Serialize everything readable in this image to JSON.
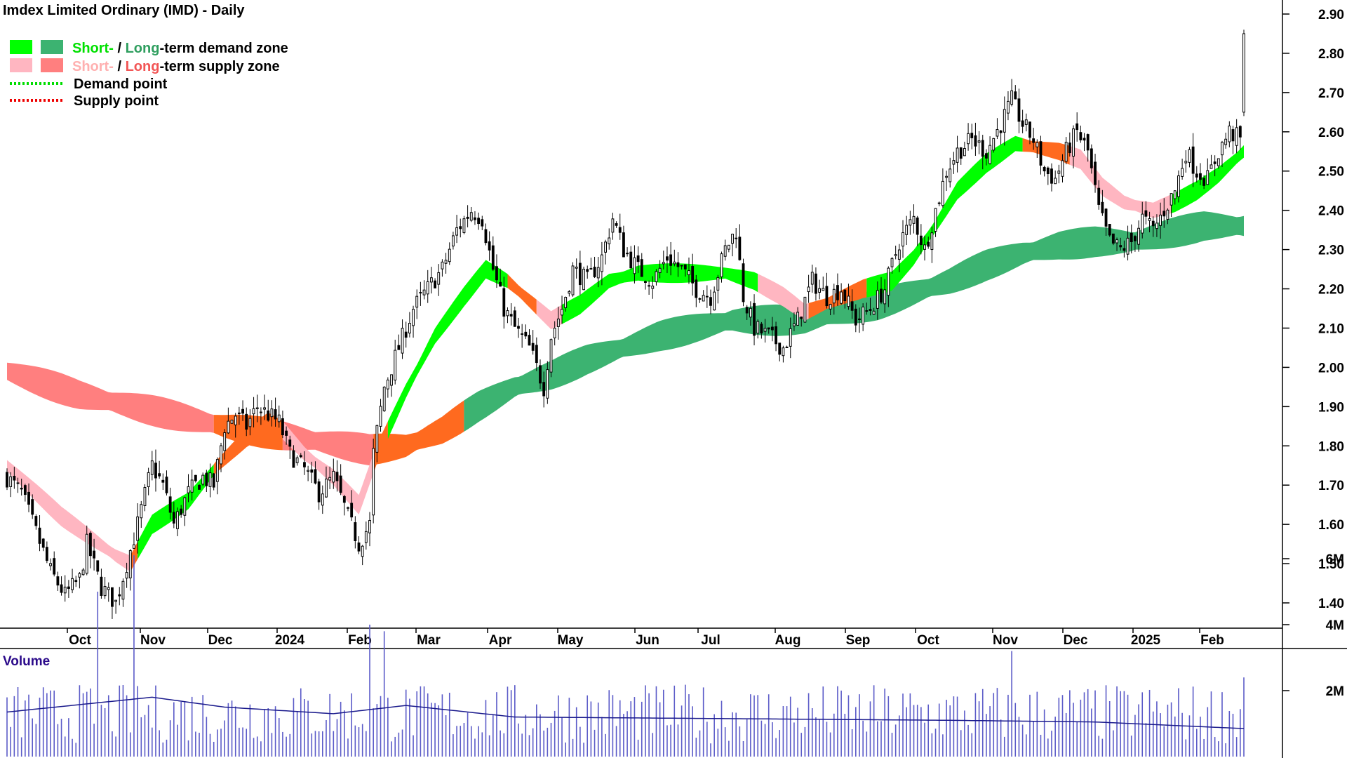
{
  "title": "Imdex Limited Ordinary (IMD) - Daily",
  "legend": {
    "demand_zone": {
      "short": "Short-",
      "sep": " / ",
      "long": "Long",
      "rest": "-term demand zone"
    },
    "supply_zone": {
      "short": "Short-",
      "sep": " / ",
      "long": "Long",
      "rest": "-term supply zone"
    },
    "demand_point": "Demand point",
    "supply_point": "Supply point"
  },
  "volume_label": "Volume",
  "colors": {
    "short_demand": "#00ff00",
    "long_demand": "#3cb371",
    "short_supply": "#ffb6c1",
    "long_supply": "#ff7f7f",
    "overlap": "#ff6a1f",
    "candle": "#000000",
    "volume": "#5b5bc8",
    "volume_ma": "#1a1a8c",
    "legend_short_text": "#00e000",
    "legend_long_text": "#2e9e5e",
    "legend_short_supply_text": "#ffb0b0",
    "legend_long_supply_text": "#f25555"
  },
  "chart_data": {
    "type": "candlestick",
    "price_axis": {
      "ylim": [
        1.32,
        2.96
      ],
      "ticks": [
        "1.40",
        "1.50",
        "1.60",
        "1.70",
        "1.80",
        "1.90",
        "2.00",
        "2.10",
        "2.20",
        "2.30",
        "2.40",
        "2.50",
        "2.60",
        "2.70",
        "2.80",
        "2.90"
      ]
    },
    "volume_axis": {
      "ylim": [
        0,
        6.5
      ],
      "ticks": [
        "2M",
        "4M",
        "6M"
      ]
    },
    "months": [
      "Oct",
      "Nov",
      "Dec",
      "2024",
      "Feb",
      "Mar",
      "Apr",
      "May",
      "Jun",
      "Jul",
      "Aug",
      "Sep",
      "Oct",
      "Nov",
      "Dec",
      "2025",
      "Feb"
    ],
    "close_path": [
      [
        0,
        1.72
      ],
      [
        4,
        1.68
      ],
      [
        8,
        1.58
      ],
      [
        12,
        1.48
      ],
      [
        16,
        1.42
      ],
      [
        20,
        1.46
      ],
      [
        22,
        1.55
      ],
      [
        26,
        1.44
      ],
      [
        30,
        1.4
      ],
      [
        33,
        1.5
      ],
      [
        36,
        1.6
      ],
      [
        40,
        1.75
      ],
      [
        43,
        1.7
      ],
      [
        46,
        1.6
      ],
      [
        50,
        1.68
      ],
      [
        54,
        1.72
      ],
      [
        57,
        1.7
      ],
      [
        60,
        1.85
      ],
      [
        63,
        1.88
      ],
      [
        66,
        1.85
      ],
      [
        69,
        1.9
      ],
      [
        72,
        1.88
      ],
      [
        75,
        1.86
      ],
      [
        78,
        1.78
      ],
      [
        82,
        1.74
      ],
      [
        86,
        1.68
      ],
      [
        90,
        1.72
      ],
      [
        94,
        1.62
      ],
      [
        97,
        1.55
      ],
      [
        100,
        1.6
      ],
      [
        101,
        1.78
      ],
      [
        104,
        1.95
      ],
      [
        108,
        2.05
      ],
      [
        112,
        2.15
      ],
      [
        116,
        2.2
      ],
      [
        120,
        2.25
      ],
      [
        124,
        2.35
      ],
      [
        128,
        2.4
      ],
      [
        131,
        2.38
      ],
      [
        134,
        2.25
      ],
      [
        137,
        2.15
      ],
      [
        140,
        2.1
      ],
      [
        144,
        2.05
      ],
      [
        148,
        1.95
      ],
      [
        150,
        2.08
      ],
      [
        153,
        2.15
      ],
      [
        156,
        2.25
      ],
      [
        160,
        2.22
      ],
      [
        164,
        2.28
      ],
      [
        167,
        2.38
      ],
      [
        170,
        2.3
      ],
      [
        174,
        2.25
      ],
      [
        178,
        2.22
      ],
      [
        182,
        2.28
      ],
      [
        186,
        2.25
      ],
      [
        190,
        2.2
      ],
      [
        194,
        2.18
      ],
      [
        198,
        2.3
      ],
      [
        201,
        2.35
      ],
      [
        203,
        2.18
      ],
      [
        206,
        2.1
      ],
      [
        210,
        2.08
      ],
      [
        214,
        2.05
      ],
      [
        218,
        2.12
      ],
      [
        222,
        2.22
      ],
      [
        226,
        2.18
      ],
      [
        230,
        2.2
      ],
      [
        234,
        2.12
      ],
      [
        238,
        2.15
      ],
      [
        242,
        2.2
      ],
      [
        246,
        2.32
      ],
      [
        250,
        2.38
      ],
      [
        253,
        2.3
      ],
      [
        256,
        2.4
      ],
      [
        259,
        2.5
      ],
      [
        262,
        2.55
      ],
      [
        266,
        2.58
      ],
      [
        270,
        2.55
      ],
      [
        274,
        2.62
      ],
      [
        277,
        2.68
      ],
      [
        280,
        2.62
      ],
      [
        283,
        2.58
      ],
      [
        286,
        2.5
      ],
      [
        289,
        2.48
      ],
      [
        292,
        2.55
      ],
      [
        295,
        2.6
      ],
      [
        298,
        2.55
      ],
      [
        301,
        2.4
      ],
      [
        304,
        2.32
      ],
      [
        307,
        2.3
      ],
      [
        310,
        2.32
      ],
      [
        313,
        2.38
      ],
      [
        316,
        2.35
      ],
      [
        319,
        2.4
      ],
      [
        322,
        2.45
      ],
      [
        325,
        2.55
      ],
      [
        328,
        2.5
      ],
      [
        331,
        2.48
      ],
      [
        334,
        2.55
      ],
      [
        337,
        2.6
      ],
      [
        340,
        2.58
      ],
      [
        341,
        2.66
      ]
    ],
    "pulse": {
      "index": 341,
      "open": 2.65,
      "close": 2.85,
      "high": 2.86,
      "low": 2.64
    },
    "short_band_center": [
      [
        0,
        1.75
      ],
      [
        15,
        1.62
      ],
      [
        30,
        1.52
      ],
      [
        34,
        1.5
      ],
      [
        40,
        1.6
      ],
      [
        50,
        1.66
      ],
      [
        58,
        1.75
      ],
      [
        66,
        1.82
      ],
      [
        72,
        1.86
      ],
      [
        76,
        1.84
      ],
      [
        82,
        1.78
      ],
      [
        90,
        1.72
      ],
      [
        97,
        1.65
      ],
      [
        102,
        1.78
      ],
      [
        110,
        1.94
      ],
      [
        118,
        2.08
      ],
      [
        126,
        2.18
      ],
      [
        132,
        2.25
      ],
      [
        138,
        2.22
      ],
      [
        144,
        2.17
      ],
      [
        150,
        2.12
      ],
      [
        158,
        2.16
      ],
      [
        166,
        2.22
      ],
      [
        174,
        2.24
      ],
      [
        182,
        2.24
      ],
      [
        190,
        2.24
      ],
      [
        198,
        2.24
      ],
      [
        206,
        2.22
      ],
      [
        214,
        2.18
      ],
      [
        220,
        2.14
      ],
      [
        228,
        2.17
      ],
      [
        236,
        2.2
      ],
      [
        244,
        2.22
      ],
      [
        250,
        2.28
      ],
      [
        256,
        2.36
      ],
      [
        262,
        2.45
      ],
      [
        270,
        2.52
      ],
      [
        278,
        2.57
      ],
      [
        284,
        2.56
      ],
      [
        290,
        2.55
      ],
      [
        296,
        2.53
      ],
      [
        302,
        2.46
      ],
      [
        308,
        2.42
      ],
      [
        316,
        2.4
      ],
      [
        322,
        2.42
      ],
      [
        328,
        2.45
      ],
      [
        334,
        2.49
      ],
      [
        341,
        2.55
      ]
    ],
    "short_band_width": 0.05,
    "short_band_states": [
      [
        0,
        33,
        "supply"
      ],
      [
        34,
        35,
        "overlap"
      ],
      [
        36,
        56,
        "demand"
      ],
      [
        57,
        75,
        "overlap"
      ],
      [
        76,
        100,
        "supply"
      ],
      [
        101,
        104,
        "overlap"
      ],
      [
        105,
        137,
        "demand"
      ],
      [
        138,
        145,
        "overlap"
      ],
      [
        146,
        152,
        "supply"
      ],
      [
        153,
        206,
        "demand"
      ],
      [
        207,
        220,
        "supply"
      ],
      [
        221,
        236,
        "overlap"
      ],
      [
        237,
        279,
        "demand"
      ],
      [
        280,
        292,
        "overlap"
      ],
      [
        293,
        320,
        "supply"
      ],
      [
        321,
        341,
        "demand"
      ]
    ],
    "long_band_center": [
      [
        0,
        1.99
      ],
      [
        20,
        1.93
      ],
      [
        40,
        1.89
      ],
      [
        60,
        1.85
      ],
      [
        80,
        1.82
      ],
      [
        100,
        1.79
      ],
      [
        110,
        1.8
      ],
      [
        120,
        1.84
      ],
      [
        130,
        1.9
      ],
      [
        140,
        1.95
      ],
      [
        150,
        1.98
      ],
      [
        160,
        2.02
      ],
      [
        170,
        2.05
      ],
      [
        180,
        2.08
      ],
      [
        190,
        2.1
      ],
      [
        200,
        2.12
      ],
      [
        210,
        2.12
      ],
      [
        220,
        2.12
      ],
      [
        230,
        2.14
      ],
      [
        240,
        2.16
      ],
      [
        250,
        2.19
      ],
      [
        260,
        2.22
      ],
      [
        270,
        2.26
      ],
      [
        280,
        2.29
      ],
      [
        290,
        2.31
      ],
      [
        300,
        2.32
      ],
      [
        310,
        2.32
      ],
      [
        320,
        2.34
      ],
      [
        330,
        2.36
      ],
      [
        341,
        2.36
      ]
    ],
    "long_band_width": 0.08,
    "long_band_states": [
      [
        0,
        56,
        "supply"
      ],
      [
        57,
        75,
        "overlap"
      ],
      [
        76,
        100,
        "supply"
      ],
      [
        101,
        125,
        "overlap"
      ],
      [
        126,
        341,
        "demand"
      ]
    ],
    "volume_ma": [
      [
        0,
        1.35
      ],
      [
        40,
        1.8
      ],
      [
        60,
        1.5
      ],
      [
        90,
        1.3
      ],
      [
        110,
        1.55
      ],
      [
        140,
        1.2
      ],
      [
        200,
        1.15
      ],
      [
        260,
        1.1
      ],
      [
        300,
        1.05
      ],
      [
        341,
        0.85
      ]
    ],
    "volume_spikes": [
      [
        25,
        5.0
      ],
      [
        35,
        6.1
      ],
      [
        100,
        4.0
      ],
      [
        104,
        3.8
      ],
      [
        277,
        3.2
      ],
      [
        341,
        2.4
      ]
    ]
  }
}
